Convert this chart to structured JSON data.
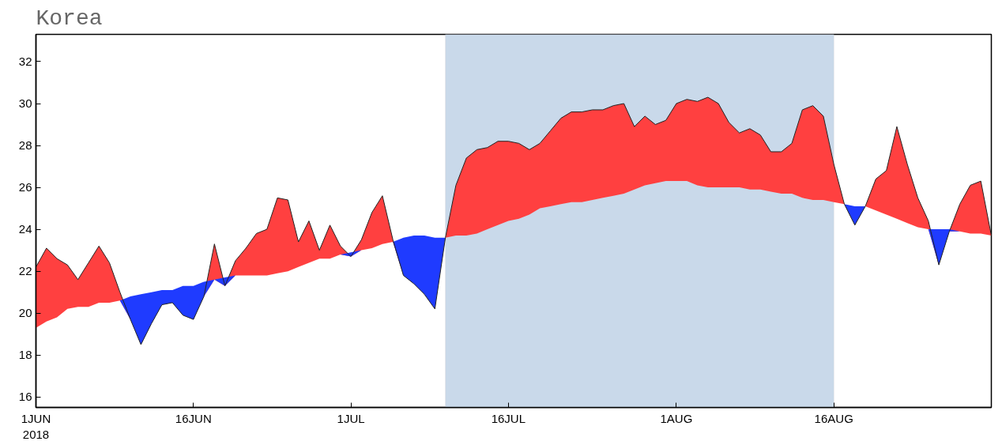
{
  "chart_data": {
    "type": "area",
    "title": "Korea",
    "x": [
      "2018-06-01",
      "2018-06-02",
      "2018-06-03",
      "2018-06-04",
      "2018-06-05",
      "2018-06-06",
      "2018-06-07",
      "2018-06-08",
      "2018-06-09",
      "2018-06-10",
      "2018-06-11",
      "2018-06-12",
      "2018-06-13",
      "2018-06-14",
      "2018-06-15",
      "2018-06-16",
      "2018-06-17",
      "2018-06-18",
      "2018-06-19",
      "2018-06-20",
      "2018-06-21",
      "2018-06-22",
      "2018-06-23",
      "2018-06-24",
      "2018-06-25",
      "2018-06-26",
      "2018-06-27",
      "2018-06-28",
      "2018-06-29",
      "2018-06-30",
      "2018-07-01",
      "2018-07-02",
      "2018-07-03",
      "2018-07-04",
      "2018-07-05",
      "2018-07-06",
      "2018-07-07",
      "2018-07-08",
      "2018-07-09",
      "2018-07-10",
      "2018-07-11",
      "2018-07-12",
      "2018-07-13",
      "2018-07-14",
      "2018-07-15",
      "2018-07-16",
      "2018-07-17",
      "2018-07-18",
      "2018-07-19",
      "2018-07-20",
      "2018-07-21",
      "2018-07-22",
      "2018-07-23",
      "2018-07-24",
      "2018-07-25",
      "2018-07-26",
      "2018-07-27",
      "2018-07-28",
      "2018-07-29",
      "2018-07-30",
      "2018-07-31",
      "2018-08-01",
      "2018-08-02",
      "2018-08-03",
      "2018-08-04",
      "2018-08-05",
      "2018-08-06",
      "2018-08-07",
      "2018-08-08",
      "2018-08-09",
      "2018-08-10",
      "2018-08-11",
      "2018-08-12",
      "2018-08-13",
      "2018-08-14",
      "2018-08-15",
      "2018-08-16",
      "2018-08-17",
      "2018-08-18",
      "2018-08-19",
      "2018-08-20",
      "2018-08-21",
      "2018-08-22",
      "2018-08-23",
      "2018-08-24",
      "2018-08-25",
      "2018-08-26",
      "2018-08-27",
      "2018-08-28",
      "2018-08-29",
      "2018-08-30",
      "2018-08-31"
    ],
    "series": [
      {
        "color": "#ff4040",
        "values": [
          22.2,
          23.1,
          22.6,
          22.3,
          21.6,
          22.4,
          23.2,
          22.4,
          21.0,
          19.7,
          18.5,
          19.5,
          20.4,
          20.5,
          19.9,
          19.7,
          20.8,
          23.3,
          21.3,
          22.5,
          23.1,
          23.8,
          24.0,
          25.5,
          25.4,
          23.4,
          24.4,
          23.0,
          24.2,
          23.2,
          22.7,
          23.5,
          24.8,
          25.6,
          23.5,
          21.8,
          21.4,
          20.9,
          20.2,
          23.6,
          26.1,
          27.4,
          27.8,
          27.9,
          28.2,
          28.2,
          28.1,
          27.8,
          28.1,
          28.7,
          29.3,
          29.6,
          29.6,
          29.7,
          29.7,
          29.9,
          30.0,
          28.9,
          29.4,
          29.0,
          29.2,
          30.0,
          30.2,
          30.1,
          30.3,
          30.0,
          29.1,
          28.6,
          28.8,
          28.5,
          27.7,
          27.7,
          28.1,
          29.7,
          29.9,
          29.4,
          27.1,
          25.2,
          24.2,
          25.1,
          26.4,
          26.8,
          28.9,
          27.1,
          25.5,
          24.4,
          22.3,
          23.9,
          25.2,
          26.1,
          26.3,
          23.7
        ]
      },
      {
        "color": "#1f3bff",
        "values": [
          19.3,
          19.6,
          19.8,
          20.2,
          20.3,
          20.3,
          20.5,
          20.5,
          20.6,
          20.8,
          20.9,
          21.0,
          21.1,
          21.1,
          21.3,
          21.3,
          21.5,
          21.6,
          21.7,
          21.8,
          21.8,
          21.8,
          21.8,
          21.9,
          22.0,
          22.2,
          22.4,
          22.6,
          22.6,
          22.8,
          22.9,
          23.0,
          23.1,
          23.3,
          23.4,
          23.6,
          23.7,
          23.7,
          23.6,
          23.6,
          23.7,
          23.7,
          23.8,
          24.0,
          24.2,
          24.4,
          24.5,
          24.7,
          25.0,
          25.1,
          25.2,
          25.3,
          25.3,
          25.4,
          25.5,
          25.6,
          25.7,
          25.9,
          26.1,
          26.2,
          26.3,
          26.3,
          26.3,
          26.1,
          26.0,
          26.0,
          26.0,
          26.0,
          25.9,
          25.9,
          25.8,
          25.7,
          25.7,
          25.5,
          25.4,
          25.4,
          25.3,
          25.2,
          25.1,
          25.1,
          24.9,
          24.7,
          24.5,
          24.3,
          24.1,
          24.0,
          24.0,
          24.0,
          23.9,
          23.8,
          23.8,
          23.7
        ]
      }
    ],
    "xlim": [
      "2018-06-01",
      "2018-08-31"
    ],
    "xticks": [
      {
        "value": "2018-06-01",
        "label": "1JUN\n2018"
      },
      {
        "value": "2018-06-16",
        "label": "16JUN"
      },
      {
        "value": "2018-07-01",
        "label": "1JUL"
      },
      {
        "value": "2018-07-16",
        "label": "16JUL"
      },
      {
        "value": "2018-08-01",
        "label": "1AUG"
      },
      {
        "value": "2018-08-16",
        "label": "16AUG"
      }
    ],
    "ylim": [
      15.5,
      33.3
    ],
    "yticks": [
      16,
      18,
      20,
      22,
      24,
      26,
      28,
      30,
      32
    ],
    "bands": [
      {
        "axis": "x",
        "from": "2018-07-10",
        "to": "2018-08-16",
        "color": "#c9d9ea"
      }
    ]
  }
}
